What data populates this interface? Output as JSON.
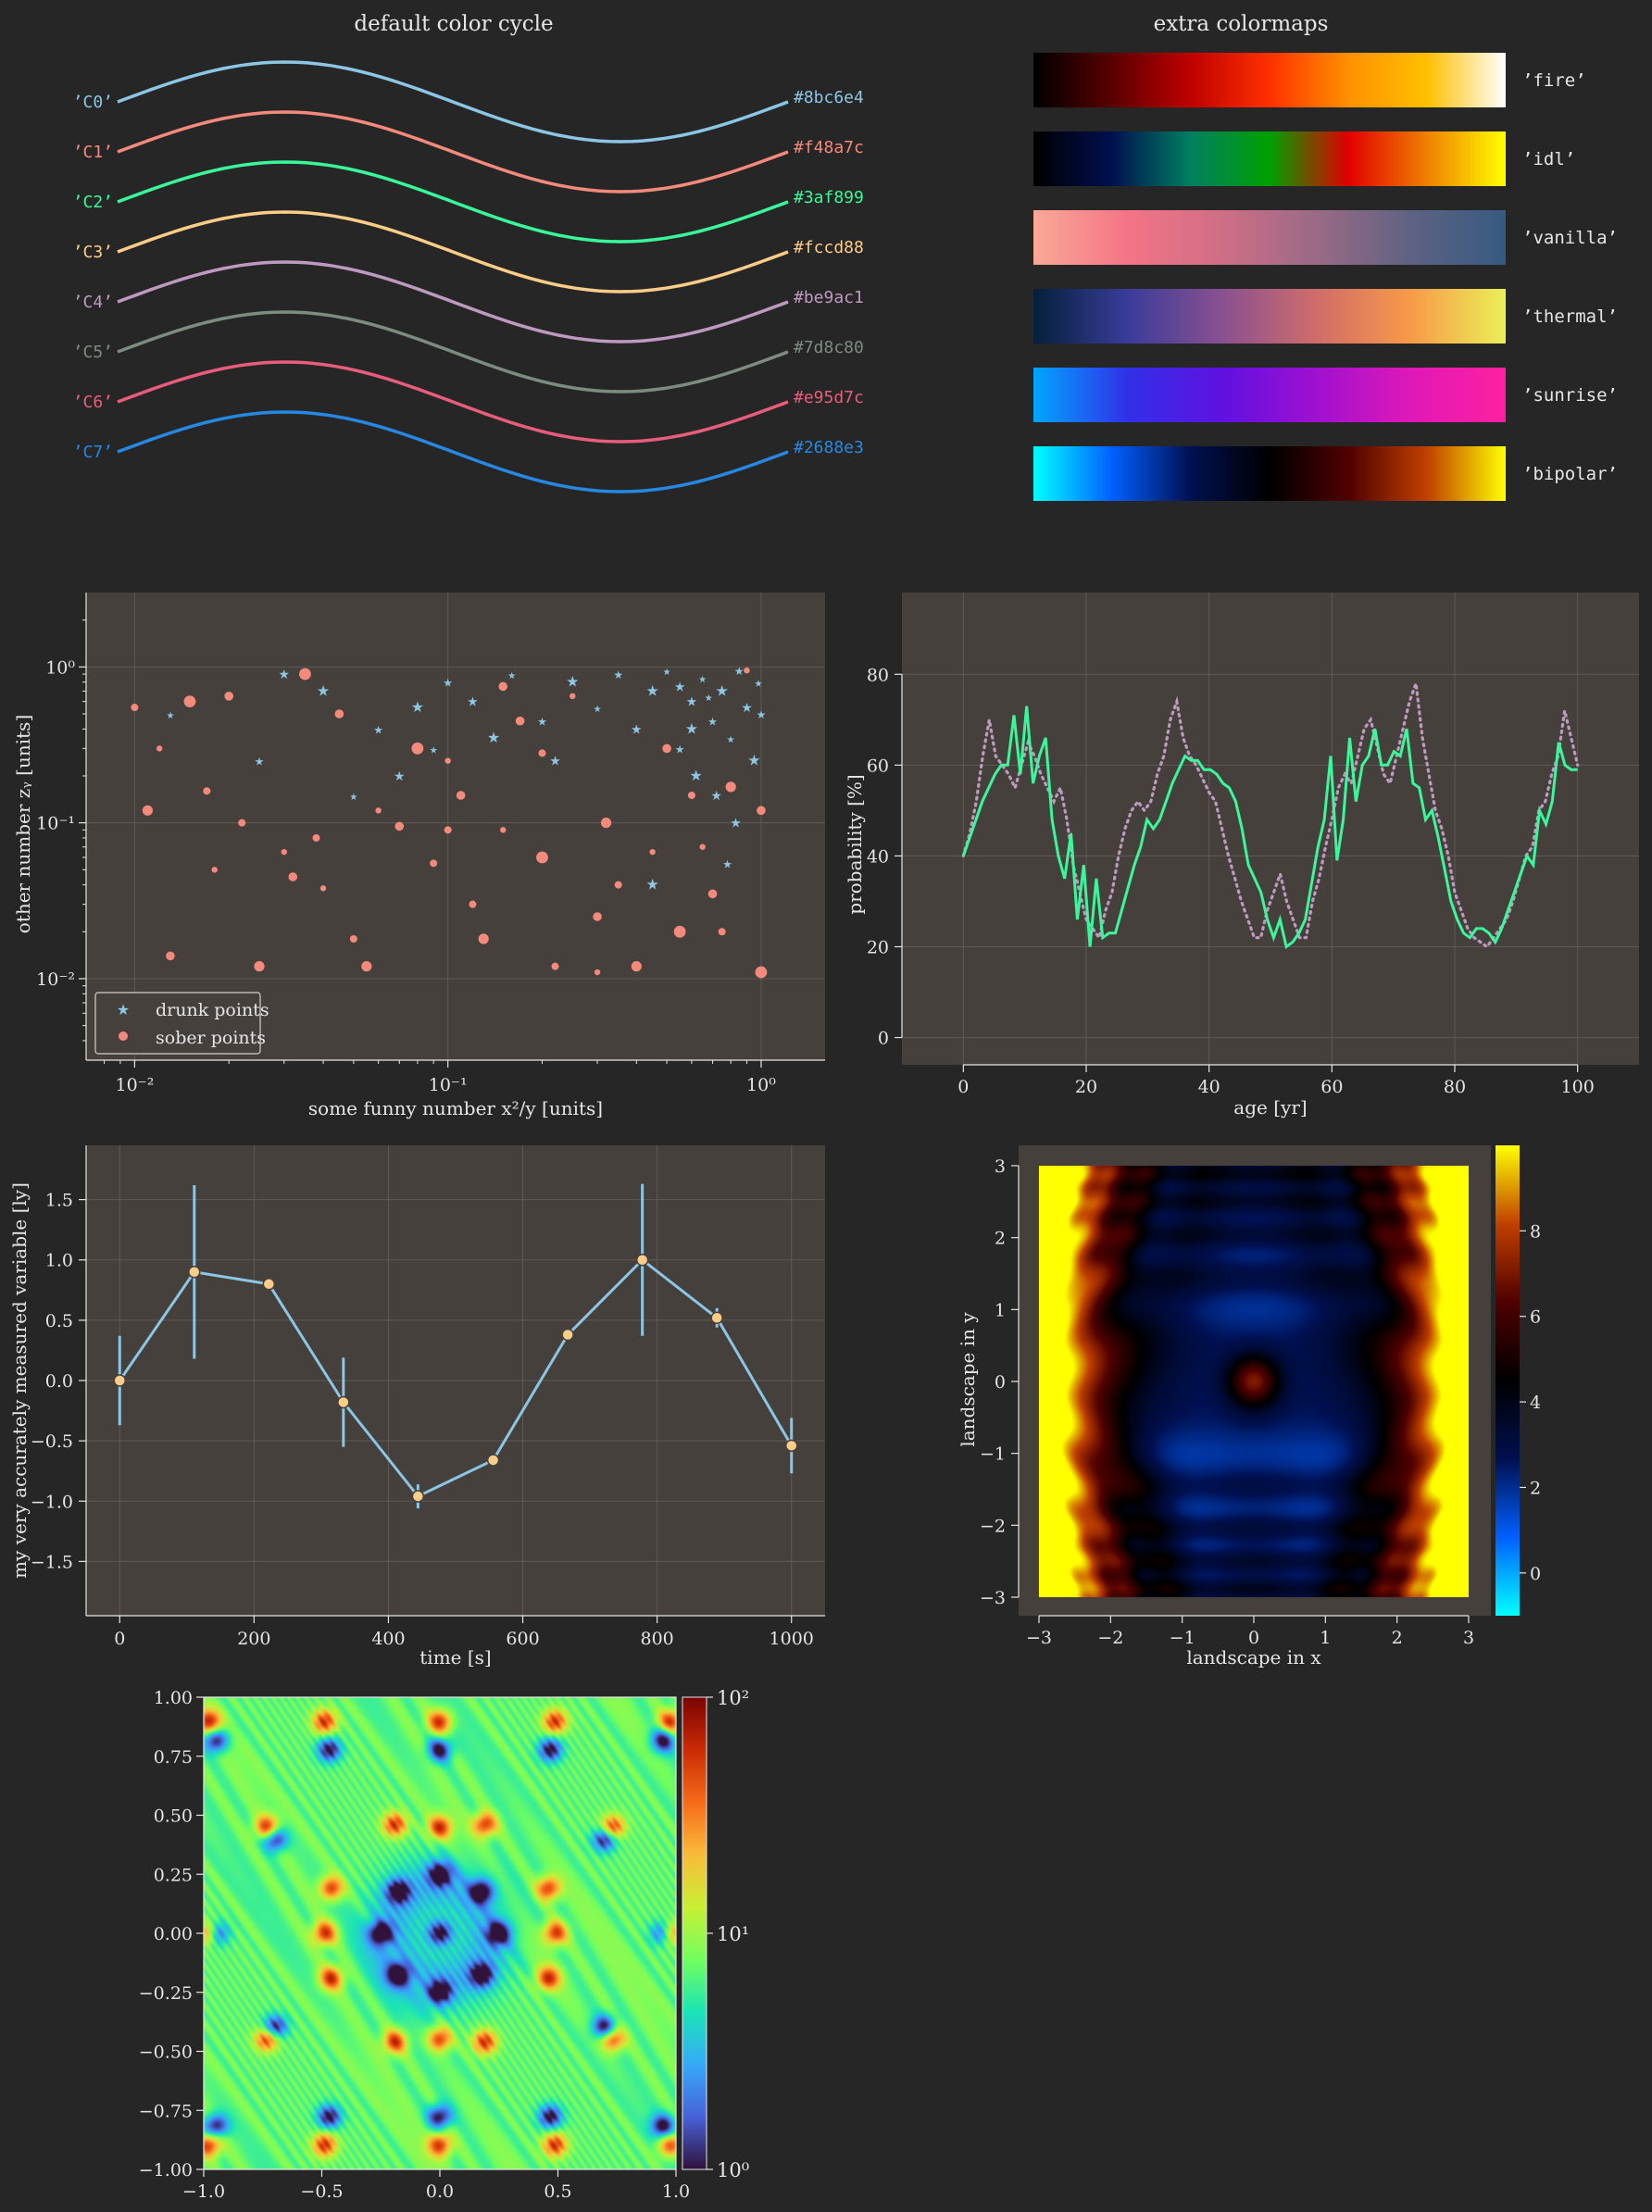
{
  "colors": {
    "background": "#262626",
    "axes_bg": "#46403d",
    "grid": "#5f5955",
    "text": "#e6e6e6",
    "cycle": [
      "#8bc6e4",
      "#f48a7c",
      "#3af899",
      "#fccd88",
      "#be9ac1",
      "#7d8c80",
      "#e95d7c",
      "#2688e3"
    ]
  },
  "color_cycle_panel": {
    "title": "default color cycle",
    "labels": [
      "’C0’",
      "’C1’",
      "’C2’",
      "’C3’",
      "’C4’",
      "’C5’",
      "’C6’",
      "’C7’"
    ],
    "hex_labels": [
      "#8bc6e4",
      "#f48a7c",
      "#3af899",
      "#fccd88",
      "#be9ac1",
      "#7d8c80",
      "#e95d7c",
      "#2688e3"
    ]
  },
  "colormaps_panel": {
    "title": "extra colormaps",
    "maps": [
      {
        "name": "’fire’",
        "stops": [
          "#000000",
          "#5a0000",
          "#c00000",
          "#ff3000",
          "#ff9000",
          "#ffc000",
          "#ffffff"
        ]
      },
      {
        "name": "’idl’",
        "stops": [
          "#000000",
          "#001050",
          "#008060",
          "#00a000",
          "#e00000",
          "#f08000",
          "#ffff00"
        ]
      },
      {
        "name": "’vanilla’",
        "stops": [
          "#fba896",
          "#f47486",
          "#cf6e86",
          "#9a6a86",
          "#5e6282",
          "#365a80"
        ]
      },
      {
        "name": "’thermal’",
        "stops": [
          "#04203a",
          "#3a3c9a",
          "#8a5090",
          "#d06c6a",
          "#f89a48",
          "#eaf058"
        ]
      },
      {
        "name": "’sunrise’",
        "stops": [
          "#00a6ff",
          "#3030e8",
          "#6010e0",
          "#a010d0",
          "#e018b8",
          "#ff20a0"
        ]
      },
      {
        "name": "’bipolar’",
        "stops": [
          "#00ffff",
          "#0060ff",
          "#001050",
          "#000000",
          "#500000",
          "#c04000",
          "#ffff00"
        ]
      }
    ]
  },
  "chart_data": [
    {
      "type": "scatter",
      "xlabel": "some funny number x²/y [units]",
      "ylabel": "other number zᵧ [units]",
      "xscale": "log",
      "yscale": "log",
      "xlim": [
        0.007,
        1.6
      ],
      "ylim": [
        0.003,
        3
      ],
      "xtick_labels": [
        "10⁻²",
        "10⁻¹",
        "10⁰"
      ],
      "ytick_labels": [
        "10⁻²",
        "10⁻¹",
        "10⁰"
      ],
      "legend_position": "lower-left",
      "series": [
        {
          "name": "drunk points",
          "marker": "star",
          "color": "#8bc6e4",
          "points": [
            [
              0.013,
              0.5
            ],
            [
              0.025,
              0.25
            ],
            [
              0.03,
              0.9
            ],
            [
              0.04,
              0.7
            ],
            [
              0.05,
              0.15
            ],
            [
              0.06,
              0.4
            ],
            [
              0.07,
              0.2
            ],
            [
              0.08,
              0.55
            ],
            [
              0.09,
              0.3
            ],
            [
              0.1,
              0.8
            ],
            [
              0.12,
              0.6
            ],
            [
              0.14,
              0.35
            ],
            [
              0.16,
              0.9
            ],
            [
              0.2,
              0.45
            ],
            [
              0.22,
              0.25
            ],
            [
              0.25,
              0.8
            ],
            [
              0.3,
              0.55
            ],
            [
              0.35,
              0.9
            ],
            [
              0.4,
              0.4
            ],
            [
              0.45,
              0.7
            ],
            [
              0.5,
              0.95
            ],
            [
              0.55,
              0.3
            ],
            [
              0.6,
              0.6
            ],
            [
              0.62,
              0.2
            ],
            [
              0.65,
              0.85
            ],
            [
              0.7,
              0.45
            ],
            [
              0.72,
              0.15
            ],
            [
              0.75,
              0.7
            ],
            [
              0.8,
              0.35
            ],
            [
              0.85,
              0.95
            ],
            [
              0.9,
              0.55
            ],
            [
              0.95,
              0.25
            ],
            [
              0.98,
              0.8
            ],
            [
              1.0,
              0.5
            ],
            [
              0.55,
              0.75
            ],
            [
              0.6,
              0.4
            ],
            [
              0.68,
              0.65
            ],
            [
              0.78,
              0.055
            ],
            [
              0.83,
              0.1
            ],
            [
              0.45,
              0.04
            ]
          ]
        },
        {
          "name": "sober points",
          "marker": "circle",
          "color": "#f48a7c",
          "points": [
            [
              0.01,
              0.55
            ],
            [
              0.011,
              0.12
            ],
            [
              0.012,
              0.3
            ],
            [
              0.013,
              0.014
            ],
            [
              0.015,
              0.6
            ],
            [
              0.017,
              0.16
            ],
            [
              0.018,
              0.05
            ],
            [
              0.02,
              0.65
            ],
            [
              0.022,
              0.1
            ],
            [
              0.025,
              0.012
            ],
            [
              0.03,
              0.065
            ],
            [
              0.032,
              0.045
            ],
            [
              0.035,
              0.9
            ],
            [
              0.038,
              0.08
            ],
            [
              0.04,
              0.038
            ],
            [
              0.045,
              0.5
            ],
            [
              0.05,
              0.018
            ],
            [
              0.055,
              0.012
            ],
            [
              0.06,
              0.12
            ],
            [
              0.07,
              0.095
            ],
            [
              0.08,
              0.3
            ],
            [
              0.09,
              0.055
            ],
            [
              0.1,
              0.25
            ],
            [
              0.11,
              0.15
            ],
            [
              0.12,
              0.03
            ],
            [
              0.13,
              0.018
            ],
            [
              0.15,
              0.09
            ],
            [
              0.17,
              0.45
            ],
            [
              0.2,
              0.06
            ],
            [
              0.22,
              0.012
            ],
            [
              0.25,
              0.65
            ],
            [
              0.3,
              0.025
            ],
            [
              0.35,
              0.04
            ],
            [
              0.4,
              0.012
            ],
            [
              0.45,
              0.065
            ],
            [
              0.5,
              0.3
            ],
            [
              0.55,
              0.02
            ],
            [
              0.6,
              0.15
            ],
            [
              0.65,
              0.07
            ],
            [
              0.7,
              0.035
            ],
            [
              0.75,
              0.02
            ],
            [
              0.8,
              0.17
            ],
            [
              0.9,
              0.95
            ],
            [
              1.0,
              0.12
            ],
            [
              1.0,
              0.011
            ],
            [
              0.1,
              0.09
            ],
            [
              0.3,
              0.011
            ],
            [
              0.15,
              0.75
            ],
            [
              0.2,
              0.28
            ],
            [
              0.32,
              0.1
            ]
          ]
        }
      ]
    },
    {
      "type": "line",
      "xlabel": "age [yr]",
      "ylabel": "probability [%]",
      "xlim": [
        -10,
        110
      ],
      "ylim": [
        -6,
        98
      ],
      "xticks": [
        0,
        20,
        40,
        60,
        80,
        100
      ],
      "yticks": [
        0,
        20,
        40,
        60,
        80
      ],
      "series": [
        {
          "style": "solid",
          "color": "#3af899",
          "values": [
            40,
            44,
            48,
            52,
            55,
            58,
            60,
            60,
            71,
            58,
            73,
            56,
            62,
            66,
            48,
            40,
            35,
            45,
            26,
            38,
            20,
            35,
            22,
            23,
            23,
            28,
            33,
            38,
            42,
            48,
            46,
            48,
            52,
            56,
            59,
            62,
            61,
            61,
            59,
            59,
            58,
            56,
            55,
            52,
            46,
            38,
            35,
            32,
            26,
            22,
            26,
            20,
            21,
            23,
            26,
            34,
            42,
            48,
            62,
            39,
            48,
            66,
            52,
            60,
            62,
            68,
            60,
            60,
            63,
            62,
            68,
            56,
            55,
            48,
            50,
            44,
            37,
            30,
            26,
            23,
            22,
            24,
            24,
            23,
            21,
            24,
            28,
            32,
            36,
            40,
            38,
            50,
            47,
            52,
            65,
            60,
            59,
            59
          ]
        },
        {
          "style": "dotted",
          "color": "#be9ac1",
          "values": [
            40,
            45,
            52,
            62,
            70,
            62,
            60,
            58,
            55,
            60,
            65,
            62,
            58,
            55,
            52,
            55,
            48,
            38,
            32,
            26,
            24,
            22,
            28,
            32,
            40,
            46,
            50,
            52,
            50,
            52,
            58,
            62,
            70,
            74,
            66,
            62,
            60,
            57,
            54,
            52,
            46,
            40,
            35,
            30,
            26,
            22,
            22,
            28,
            32,
            36,
            30,
            26,
            22,
            22,
            30,
            35,
            42,
            48,
            55,
            58,
            56,
            62,
            68,
            70,
            64,
            58,
            56,
            62,
            68,
            74,
            78,
            66,
            58,
            50,
            46,
            40,
            32,
            28,
            24,
            22,
            21,
            20,
            22,
            24,
            26,
            30,
            35,
            40,
            42,
            50,
            52,
            58,
            62,
            72,
            66,
            60
          ]
        }
      ]
    },
    {
      "type": "line",
      "xlabel": "time [s]",
      "ylabel": "my very accurately measured variable [ly]",
      "xlim": [
        -50,
        1050
      ],
      "ylim": [
        -1.95,
        1.95
      ],
      "xticks": [
        0,
        200,
        400,
        600,
        800,
        1000
      ],
      "yticks": [
        -1.5,
        -1.0,
        -0.5,
        0.0,
        0.5,
        1.0,
        1.5
      ],
      "series": [
        {
          "color": "#8bc6e4",
          "marker_color": "#fccd88",
          "x": [
            0,
            111,
            222,
            333,
            444,
            556,
            667,
            778,
            889,
            1000
          ],
          "y": [
            0.0,
            0.9,
            0.8,
            -0.18,
            -0.96,
            -0.66,
            0.38,
            1.0,
            0.52,
            -0.54
          ],
          "yerr": [
            0.37,
            0.72,
            0.0,
            0.37,
            0.1,
            0.0,
            0.0,
            0.63,
            0.08,
            0.23
          ]
        }
      ]
    },
    {
      "type": "heatmap",
      "xlabel": "landscape in x",
      "ylabel": "landscape in y",
      "xlim": [
        -3,
        3
      ],
      "ylim": [
        -3,
        3
      ],
      "xticks": [
        -3,
        -2,
        -1,
        0,
        1,
        2,
        3
      ],
      "yticks": [
        -3,
        -2,
        -1,
        0,
        1,
        2,
        3
      ],
      "colorbar_ticks": [
        0,
        2,
        4,
        6,
        8
      ],
      "colorbar_range": [
        -1,
        10
      ],
      "colormap": "bipolar"
    },
    {
      "type": "heatmap",
      "subtype": "streamline field",
      "xlim": [
        -1,
        1
      ],
      "ylim": [
        -1,
        1
      ],
      "xticks": [
        -1.0,
        -0.5,
        0.0,
        0.5,
        1.0
      ],
      "yticks": [
        -1.0,
        -0.75,
        -0.5,
        -0.25,
        0.0,
        0.25,
        0.5,
        0.75,
        1.0
      ],
      "colorbar_scale": "log",
      "colorbar_tick_labels": [
        "10⁰",
        "10¹",
        "10²"
      ]
    }
  ]
}
